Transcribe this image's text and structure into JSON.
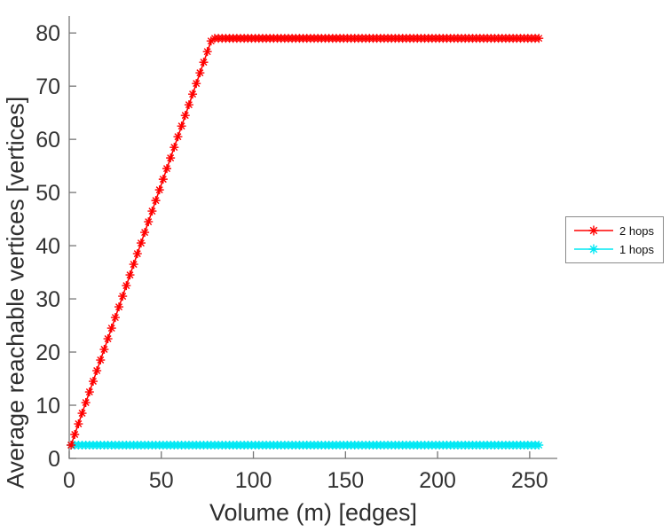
{
  "figure": {
    "background": "#ffffff"
  },
  "axes": {
    "x_ticks": [
      0,
      50,
      100,
      150,
      200,
      250
    ],
    "y_ticks": [
      0,
      10,
      20,
      30,
      40,
      50,
      60,
      70,
      80
    ],
    "axis_color": "#767676",
    "tick_text_color": "#333333"
  },
  "legend": {
    "items": [
      {
        "label": "2 hops",
        "color": "#ff0000"
      },
      {
        "label": "1 hops",
        "color": "#00e8f4"
      }
    ]
  },
  "chart_data": {
    "type": "line",
    "title": "",
    "xlabel": "Volume (m) [edges]",
    "ylabel": "Average reachable vertices [vertices]",
    "xlim": [
      0,
      265
    ],
    "ylim": [
      0,
      83.2
    ],
    "grid": false,
    "legend_position": "right-outside",
    "marker": "asterisk",
    "x": [
      1,
      3,
      5,
      7,
      9,
      11,
      13,
      15,
      17,
      19,
      21,
      23,
      25,
      27,
      29,
      31,
      33,
      35,
      37,
      39,
      41,
      43,
      45,
      47,
      49,
      51,
      53,
      55,
      57,
      59,
      61,
      63,
      65,
      67,
      69,
      71,
      73,
      75,
      77,
      79,
      81,
      83,
      85,
      87,
      89,
      91,
      93,
      95,
      97,
      99,
      101,
      103,
      105,
      107,
      109,
      111,
      113,
      115,
      117,
      119,
      121,
      123,
      125,
      127,
      129,
      131,
      133,
      135,
      137,
      139,
      141,
      143,
      145,
      147,
      149,
      151,
      153,
      155,
      157,
      159,
      161,
      163,
      165,
      167,
      169,
      171,
      173,
      175,
      177,
      179,
      181,
      183,
      185,
      187,
      189,
      191,
      193,
      195,
      197,
      199,
      201,
      203,
      205,
      207,
      209,
      211,
      213,
      215,
      217,
      219,
      221,
      223,
      225,
      227,
      229,
      231,
      233,
      235,
      237,
      239,
      241,
      243,
      245,
      247,
      249,
      251,
      253,
      255
    ],
    "series": [
      {
        "name": "2 hops",
        "color": "#ff0000",
        "values": [
          2.5,
          4.5,
          6.5,
          8.5,
          10.5,
          12.5,
          14.5,
          16.5,
          18.5,
          20.5,
          22.5,
          24.5,
          26.5,
          28.5,
          30.5,
          32.5,
          34.5,
          36.5,
          38.5,
          40.5,
          42.5,
          44.5,
          46.5,
          48.5,
          50.5,
          52.5,
          54.5,
          56.5,
          58.5,
          60.5,
          62.5,
          64.5,
          66.5,
          68.5,
          70.5,
          72.5,
          74.5,
          76.5,
          78.5,
          79,
          79,
          79,
          79,
          79,
          79,
          79,
          79,
          79,
          79,
          79,
          79,
          79,
          79,
          79,
          79,
          79,
          79,
          79,
          79,
          79,
          79,
          79,
          79,
          79,
          79,
          79,
          79,
          79,
          79,
          79,
          79,
          79,
          79,
          79,
          79,
          79,
          79,
          79,
          79,
          79,
          79,
          79,
          79,
          79,
          79,
          79,
          79,
          79,
          79,
          79,
          79,
          79,
          79,
          79,
          79,
          79,
          79,
          79,
          79,
          79,
          79,
          79,
          79,
          79,
          79,
          79,
          79,
          79,
          79,
          79,
          79,
          79,
          79,
          79,
          79,
          79,
          79,
          79,
          79,
          79,
          79,
          79,
          79,
          79,
          79,
          79,
          79,
          79
        ]
      },
      {
        "name": "1 hops",
        "color": "#00e8f4",
        "values": [
          2.5,
          2.5,
          2.5,
          2.5,
          2.5,
          2.5,
          2.5,
          2.5,
          2.5,
          2.5,
          2.5,
          2.5,
          2.5,
          2.5,
          2.5,
          2.5,
          2.5,
          2.5,
          2.5,
          2.5,
          2.5,
          2.5,
          2.5,
          2.5,
          2.5,
          2.5,
          2.5,
          2.5,
          2.5,
          2.5,
          2.5,
          2.5,
          2.5,
          2.5,
          2.5,
          2.5,
          2.5,
          2.5,
          2.5,
          2.5,
          2.5,
          2.5,
          2.5,
          2.5,
          2.5,
          2.5,
          2.5,
          2.5,
          2.5,
          2.5,
          2.5,
          2.5,
          2.5,
          2.5,
          2.5,
          2.5,
          2.5,
          2.5,
          2.5,
          2.5,
          2.5,
          2.5,
          2.5,
          2.5,
          2.5,
          2.5,
          2.5,
          2.5,
          2.5,
          2.5,
          2.5,
          2.5,
          2.5,
          2.5,
          2.5,
          2.5,
          2.5,
          2.5,
          2.5,
          2.5,
          2.5,
          2.5,
          2.5,
          2.5,
          2.5,
          2.5,
          2.5,
          2.5,
          2.5,
          2.5,
          2.5,
          2.5,
          2.5,
          2.5,
          2.5,
          2.5,
          2.5,
          2.5,
          2.5,
          2.5,
          2.5,
          2.5,
          2.5,
          2.5,
          2.5,
          2.5,
          2.5,
          2.5,
          2.5,
          2.5,
          2.5,
          2.5,
          2.5,
          2.5,
          2.5,
          2.5,
          2.5,
          2.5,
          2.5,
          2.5,
          2.5,
          2.5,
          2.5,
          2.5,
          2.5,
          2.5,
          2.5,
          2.5
        ]
      }
    ]
  }
}
